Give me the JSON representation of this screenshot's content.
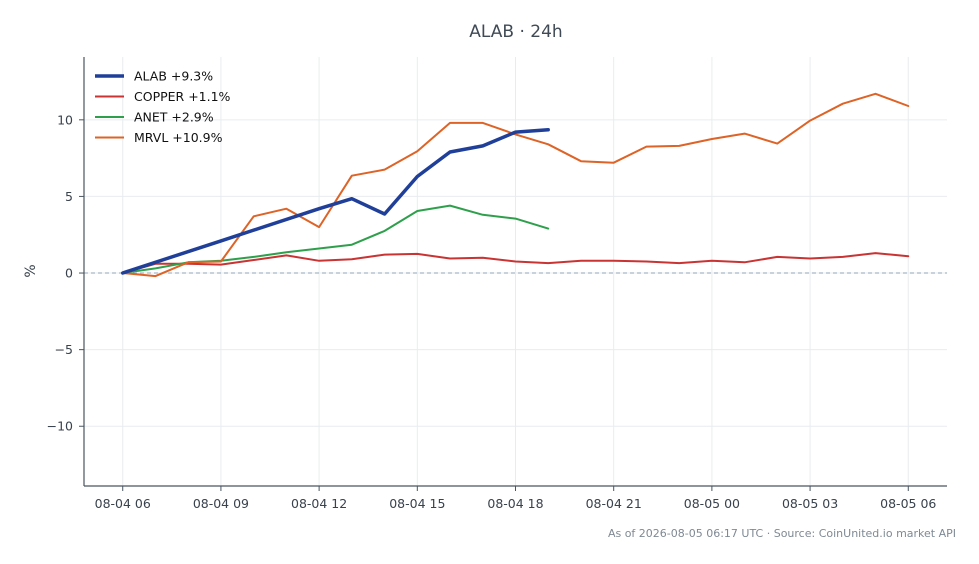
{
  "chart_data": {
    "type": "line",
    "title": "ALAB · 24h",
    "xlabel": "",
    "ylabel": "%",
    "x_ticks": [
      "08-04 06",
      "08-04 09",
      "08-04 12",
      "08-04 15",
      "08-04 18",
      "08-04 21",
      "08-05 00",
      "08-05 03",
      "08-05 06"
    ],
    "y_ticks": [
      "−10",
      "−5",
      "0",
      "5",
      "10"
    ],
    "ylim": [
      -13.9,
      14.1
    ],
    "xlim": [
      "08-04 04:49",
      "08-05 07:11"
    ],
    "grid": true,
    "zero_line": true,
    "legend_position": "top-left",
    "series": [
      {
        "name": "ALAB +9.3%",
        "color": "#1f3f99",
        "emphasis": true,
        "points": [
          [
            "08-04 06:00",
            0.0
          ],
          [
            "08-04 09:00",
            2.1
          ],
          [
            "08-04 12:00",
            4.2
          ],
          [
            "08-04 13:00",
            4.85
          ],
          [
            "08-04 14:00",
            3.85
          ],
          [
            "08-04 15:00",
            6.3
          ],
          [
            "08-04 16:00",
            7.9
          ],
          [
            "08-04 17:00",
            8.3
          ],
          [
            "08-04 18:00",
            9.2
          ],
          [
            "08-04 19:00",
            9.35
          ]
        ]
      },
      {
        "name": "COPPER +1.1%",
        "color": "#c93333",
        "emphasis": false,
        "points": [
          [
            "08-04 06:00",
            0.0
          ],
          [
            "08-04 07:00",
            0.6
          ],
          [
            "08-04 08:00",
            0.6
          ],
          [
            "08-04 09:00",
            0.55
          ],
          [
            "08-04 10:00",
            0.85
          ],
          [
            "08-04 11:00",
            1.15
          ],
          [
            "08-04 12:00",
            0.8
          ],
          [
            "08-04 13:00",
            0.9
          ],
          [
            "08-04 14:00",
            1.2
          ],
          [
            "08-04 15:00",
            1.25
          ],
          [
            "08-04 16:00",
            0.95
          ],
          [
            "08-04 17:00",
            1.0
          ],
          [
            "08-04 18:00",
            0.75
          ],
          [
            "08-04 19:00",
            0.65
          ],
          [
            "08-04 20:00",
            0.8
          ],
          [
            "08-04 21:00",
            0.8
          ],
          [
            "08-04 22:00",
            0.75
          ],
          [
            "08-04 23:00",
            0.65
          ],
          [
            "08-05 00:00",
            0.8
          ],
          [
            "08-05 01:00",
            0.7
          ],
          [
            "08-05 02:00",
            1.05
          ],
          [
            "08-05 03:00",
            0.95
          ],
          [
            "08-05 04:00",
            1.05
          ],
          [
            "08-05 05:00",
            1.3
          ],
          [
            "08-05 06:00",
            1.1
          ]
        ]
      },
      {
        "name": "ANET +2.9%",
        "color": "#2ea04c",
        "emphasis": false,
        "points": [
          [
            "08-04 06:00",
            0.0
          ],
          [
            "08-04 07:00",
            0.3
          ],
          [
            "08-04 08:00",
            0.7
          ],
          [
            "08-04 09:00",
            0.8
          ],
          [
            "08-04 10:00",
            1.05
          ],
          [
            "08-04 11:00",
            1.35
          ],
          [
            "08-04 12:00",
            1.6
          ],
          [
            "08-04 13:00",
            1.85
          ],
          [
            "08-04 14:00",
            2.75
          ],
          [
            "08-04 15:00",
            4.05
          ],
          [
            "08-04 16:00",
            4.4
          ],
          [
            "08-04 17:00",
            3.8
          ],
          [
            "08-04 18:00",
            3.55
          ],
          [
            "08-04 19:00",
            2.9
          ]
        ]
      },
      {
        "name": "MRVL +10.9%",
        "color": "#dd6326",
        "emphasis": false,
        "points": [
          [
            "08-04 06:00",
            0.0
          ],
          [
            "08-04 07:00",
            -0.2
          ],
          [
            "08-04 08:00",
            0.7
          ],
          [
            "08-04 09:00",
            0.75
          ],
          [
            "08-04 10:00",
            3.7
          ],
          [
            "08-04 11:00",
            4.2
          ],
          [
            "08-04 12:00",
            3.0
          ],
          [
            "08-04 13:00",
            6.35
          ],
          [
            "08-04 14:00",
            6.75
          ],
          [
            "08-04 15:00",
            7.95
          ],
          [
            "08-04 16:00",
            9.8
          ],
          [
            "08-04 17:00",
            9.8
          ],
          [
            "08-04 18:00",
            9.05
          ],
          [
            "08-04 19:00",
            8.4
          ],
          [
            "08-04 20:00",
            7.3
          ],
          [
            "08-04 21:00",
            7.2
          ],
          [
            "08-04 22:00",
            8.25
          ],
          [
            "08-04 23:00",
            8.3
          ],
          [
            "08-05 00:00",
            8.75
          ],
          [
            "08-05 01:00",
            9.1
          ],
          [
            "08-05 02:00",
            8.45
          ],
          [
            "08-05 03:00",
            9.95
          ],
          [
            "08-05 04:00",
            11.05
          ],
          [
            "08-05 05:00",
            11.7
          ],
          [
            "08-05 06:00",
            10.9
          ]
        ]
      }
    ],
    "source_note": "As of 2026-08-05 06:17 UTC · Source: CoinUnited.io market API",
    "colors": {
      "axis": "#4a5561",
      "grid": "#e9ecef",
      "zero_line": "#8fa4b8",
      "text": "#39424d"
    }
  }
}
